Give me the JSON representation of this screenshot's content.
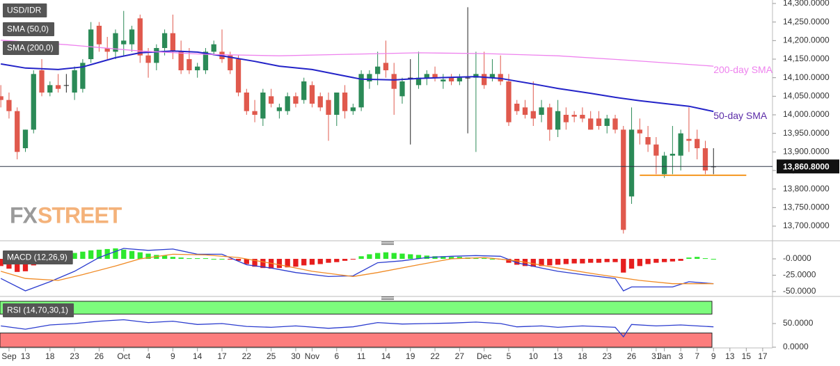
{
  "chart_data": [
    {
      "type": "candlestick",
      "title": "USD/IDR",
      "xlim": [
        -3.1,
        91.2
      ],
      "ylim": [
        13662.5,
        14309.4
      ],
      "grid": false,
      "yticks": [
        {
          "value": 14300,
          "label": "14,300.0000"
        },
        {
          "value": 14250,
          "label": "14,250.0000"
        },
        {
          "value": 14200,
          "label": "14,200.0000"
        },
        {
          "value": 14150,
          "label": "14,150.0000"
        },
        {
          "value": 14100,
          "label": "14,100.0000"
        },
        {
          "value": 14050,
          "label": "14,050.0000"
        },
        {
          "value": 14000,
          "label": "14,000.0000"
        },
        {
          "value": 13950,
          "label": "13,950.0000"
        },
        {
          "value": 13900,
          "label": "13,900.0000"
        },
        {
          "value": 13850,
          "label": "13,850.0000"
        },
        {
          "value": 13800,
          "label": "13,800.0000"
        },
        {
          "value": 13750,
          "label": "13,750.0000"
        },
        {
          "value": 13700,
          "label": "13,700.0000"
        }
      ],
      "up_color": "#2b8a57",
      "down_color": "#e0594d",
      "doji_color": "#222222",
      "candles": {
        "x": [
          -3,
          -2,
          -1,
          0,
          1,
          2,
          3,
          4,
          5,
          6,
          7,
          8,
          9,
          10,
          11,
          12,
          13,
          14,
          15,
          16,
          17,
          18,
          19,
          20,
          21,
          22,
          23,
          24,
          25,
          26,
          27,
          28,
          29,
          30,
          31,
          32,
          33,
          34,
          35,
          36,
          37,
          38,
          39,
          40,
          41,
          42,
          43,
          44,
          45,
          46,
          47,
          48,
          49,
          50,
          51,
          52,
          53,
          54,
          55,
          56,
          57,
          58,
          59,
          60,
          61,
          62,
          63,
          64,
          65,
          66,
          67,
          68,
          69,
          70,
          71,
          72,
          73,
          74,
          75,
          76,
          77,
          78,
          79,
          80,
          81,
          82,
          83,
          84
        ],
        "open": [
          14050,
          14040,
          14010,
          13910,
          13960,
          14120,
          14060,
          14080,
          14080,
          14060,
          14070,
          14150,
          14240,
          14180,
          14170,
          14190,
          14190,
          14260,
          14160,
          14140,
          14180,
          14220,
          14170,
          14150,
          14120,
          14120,
          14170,
          14170,
          14160,
          14150,
          14060,
          14010,
          13990,
          14050,
          14010,
          14010,
          14050,
          14040,
          14080,
          14050,
          14040,
          14000,
          14060,
          14010,
          14020,
          14090,
          14110,
          14140,
          14110,
          14050,
          14100,
          14080,
          14100,
          14110,
          14090,
          14100,
          14090,
          14100,
          14100,
          14110,
          14100,
          14110,
          14090,
          14030,
          14020,
          14010,
          14000,
          14020,
          13960,
          14000,
          14000,
          14000,
          13990,
          13990,
          13970,
          13990,
          13960,
          13780,
          13960,
          13940,
          13920,
          13840,
          13890,
          13890,
          13935,
          13935,
          13910,
          13860
        ],
        "high": [
          14080,
          14060,
          14020,
          13960,
          14120,
          14150,
          14090,
          14110,
          14110,
          14130,
          14150,
          14250,
          14250,
          14210,
          14230,
          14280,
          14240,
          14270,
          14180,
          14190,
          14230,
          14270,
          14200,
          14180,
          14140,
          14180,
          14200,
          14230,
          14170,
          14160,
          14070,
          14040,
          14070,
          14070,
          14030,
          14060,
          14060,
          14100,
          14090,
          14060,
          14060,
          14060,
          14080,
          14030,
          14120,
          14120,
          14170,
          14200,
          14140,
          14100,
          14150,
          14170,
          14120,
          14130,
          14110,
          14110,
          14110,
          14290,
          14170,
          14170,
          14150,
          14160,
          14110,
          14040,
          14040,
          14090,
          14040,
          14030,
          14040,
          14020,
          14010,
          14020,
          14010,
          14010,
          14000,
          14000,
          13970,
          14020,
          13990,
          13970,
          13940,
          13900,
          13970,
          13960,
          14020,
          13960,
          13930,
          13910
        ],
        "low": [
          14020,
          13990,
          13880,
          13900,
          13950,
          14050,
          14050,
          14060,
          14060,
          14040,
          14060,
          14140,
          14170,
          14150,
          14150,
          14160,
          14170,
          14140,
          14100,
          14120,
          14160,
          14150,
          14110,
          14110,
          14100,
          14110,
          14160,
          14140,
          14110,
          14050,
          14000,
          13980,
          13970,
          14020,
          13990,
          14000,
          14020,
          14030,
          14020,
          14010,
          13930,
          13970,
          13990,
          14000,
          14010,
          14070,
          14080,
          14100,
          14000,
          14030,
          13920,
          14070,
          14080,
          14090,
          14070,
          14080,
          14080,
          13950,
          13900,
          14070,
          14090,
          14080,
          13970,
          14000,
          13990,
          13970,
          13980,
          13930,
          13940,
          13960,
          13980,
          13980,
          13960,
          13960,
          13950,
          13950,
          13680,
          13760,
          13920,
          13900,
          13840,
          13830,
          13840,
          13850,
          13900,
          13880,
          13840,
          13840
        ],
        "close": [
          14040,
          14010,
          13900,
          13960,
          14110,
          14060,
          14080,
          14070,
          14080,
          14120,
          14140,
          14230,
          14190,
          14170,
          14220,
          14200,
          14230,
          14160,
          14140,
          14180,
          14220,
          14170,
          14120,
          14120,
          14130,
          14170,
          14190,
          14150,
          14120,
          14060,
          14010,
          14000,
          14060,
          14030,
          14020,
          14050,
          14030,
          14090,
          14030,
          14020,
          14000,
          14060,
          14010,
          14020,
          14110,
          14110,
          14130,
          14120,
          14070,
          14090,
          14100,
          14100,
          14110,
          14100,
          14095,
          14090,
          14100,
          14100,
          14110,
          14080,
          14110,
          14090,
          13980,
          14010,
          14000,
          13990,
          14020,
          13960,
          14010,
          13980,
          13995,
          13990,
          13960,
          13970,
          13990,
          13960,
          13690,
          13960,
          13950,
          13920,
          13890,
          13890,
          13895,
          13950,
          13930,
          13910,
          13850,
          13860.8
        ]
      },
      "series": [
        {
          "name": "SMA (50,0)",
          "color": "#2323c8",
          "x": [
            -3,
            0,
            4,
            7,
            11,
            14,
            18,
            21,
            24,
            28,
            31,
            35,
            38,
            41,
            45,
            48,
            52,
            55,
            58,
            62,
            65,
            69,
            72,
            75,
            79,
            81,
            84
          ],
          "values": [
            14137,
            14126,
            14122,
            14129,
            14154,
            14167,
            14172,
            14169,
            14159,
            14144,
            14131,
            14122,
            14109,
            14096,
            14094,
            14098,
            14101,
            14103,
            14098,
            14083,
            14071,
            14058,
            14047,
            14038,
            14028,
            14023,
            14009
          ]
        },
        {
          "name": "SMA (200,0)",
          "color": "#ee82ee",
          "x": [
            -3,
            5,
            14,
            22,
            31,
            39,
            48,
            56,
            65,
            73,
            84
          ],
          "values": [
            14201,
            14189,
            14172,
            14163,
            14159,
            14163,
            14167,
            14165,
            14159,
            14148,
            14131
          ]
        }
      ],
      "annotations": [
        {
          "text": "200-day SMA",
          "color": "#ee82ee",
          "series": 1
        },
        {
          "text": "50-day SMA",
          "color": "#5b2ca8",
          "series": 0
        }
      ],
      "support": {
        "value": 13837,
        "x": [
          75,
          88
        ],
        "color": "#f5961e"
      },
      "last_price": {
        "value": 13860.8,
        "label": "13,860.8000"
      },
      "watermark": [
        "FX",
        "STREET"
      ]
    },
    {
      "type": "macd",
      "title": "MACD (12,26,9)",
      "xlim": [
        -3.1,
        91.2
      ],
      "ylim": [
        -56.4,
        21.3
      ],
      "yticks": [
        {
          "value": 0,
          "label": "-0.0000"
        },
        {
          "value": -25,
          "label": "-25.0000"
        },
        {
          "value": -50,
          "label": "-50.0000"
        }
      ],
      "histogram": {
        "pos_color": "#2ee82e",
        "neg_color": "#e61e1e",
        "x": [
          -3,
          -2,
          -1,
          0,
          1,
          2,
          3,
          4,
          5,
          6,
          7,
          8,
          9,
          10,
          11,
          12,
          13,
          14,
          15,
          16,
          17,
          18,
          19,
          20,
          21,
          22,
          23,
          24,
          25,
          26,
          27,
          28,
          29,
          30,
          31,
          32,
          33,
          34,
          35,
          36,
          37,
          38,
          39,
          40,
          41,
          42,
          43,
          44,
          45,
          46,
          47,
          48,
          49,
          50,
          51,
          52,
          53,
          54,
          55,
          56,
          57,
          58,
          59,
          60,
          61,
          62,
          63,
          64,
          65,
          66,
          67,
          68,
          69,
          70,
          71,
          72,
          73,
          74,
          75,
          76,
          77,
          78,
          79,
          80,
          81,
          82,
          83,
          84
        ],
        "values": [
          -11,
          -15,
          -20,
          -19,
          -10,
          -5,
          -2,
          3,
          6,
          9,
          11,
          13,
          14,
          15,
          16,
          14,
          12,
          10,
          8,
          6,
          5,
          3,
          2,
          1,
          1,
          1,
          0,
          0,
          -1,
          -3,
          -8,
          -12,
          -14,
          -15,
          -14,
          -13,
          -12,
          -10,
          -9,
          -8,
          -6,
          -5,
          -3,
          -1,
          4,
          7,
          9,
          10,
          9,
          8,
          7,
          6,
          5,
          4,
          4,
          3,
          3,
          2,
          1,
          1,
          0,
          -1,
          -6,
          -9,
          -11,
          -12,
          -11,
          -10,
          -9,
          -8,
          -7,
          -7,
          -6,
          -6,
          -5,
          -5,
          -21,
          -15,
          -11,
          -8,
          -6,
          -5,
          -4,
          -3,
          2,
          3,
          1,
          0
        ]
      },
      "series": [
        {
          "name": "MACD",
          "color": "#2b3ccf",
          "x": [
            -3,
            0,
            3,
            6,
            9,
            12,
            15,
            18,
            21,
            24,
            27,
            30,
            33,
            37,
            40,
            43,
            46,
            49,
            52,
            55,
            58,
            60,
            63,
            65,
            68,
            72,
            73,
            74,
            77,
            79,
            81,
            84
          ],
          "values": [
            -30,
            -49,
            -35,
            -19,
            2,
            16,
            13,
            15,
            7,
            7,
            -9,
            -14,
            -21,
            -27,
            -26,
            -6,
            -3,
            2,
            4,
            5,
            4,
            -6,
            -14,
            -19,
            -24,
            -30,
            -49,
            -43,
            -43,
            -43,
            -35,
            -38
          ]
        },
        {
          "name": "Signal",
          "color": "#f08a24",
          "x": [
            -3,
            0,
            4,
            7,
            11,
            14,
            18,
            22,
            26,
            31,
            35,
            40,
            43,
            48,
            52,
            56,
            60,
            65,
            70,
            75,
            79,
            84
          ],
          "values": [
            -19,
            -30,
            -33,
            -24,
            -11,
            0,
            7,
            6,
            2,
            -9,
            -19,
            -27,
            -21,
            -9,
            0,
            2,
            -3,
            -14,
            -24,
            -33,
            -38,
            -38
          ]
        }
      ]
    },
    {
      "type": "rsi",
      "title": "RSI (14,70,30,1)",
      "xlim": [
        -3.1,
        91.2
      ],
      "ylim": [
        -1.5,
        98.5
      ],
      "yticks": [
        {
          "value": 50,
          "label": "50.0000"
        },
        {
          "value": 0,
          "label": "0.0000"
        }
      ],
      "overbought": 70,
      "oversold": 30,
      "overbought_color": "#7dfc7d",
      "oversold_color": "#fc7d7d",
      "series": [
        {
          "name": "RSI",
          "color": "#2b3ccf",
          "x": [
            -3,
            0,
            3,
            6,
            9,
            12,
            15,
            18,
            21,
            24,
            27,
            30,
            33,
            37,
            40,
            43,
            46,
            49,
            52,
            55,
            58,
            60,
            63,
            65,
            68,
            72,
            73,
            74,
            77,
            80,
            84
          ],
          "values": [
            45,
            38,
            47,
            50,
            55,
            58,
            52,
            55,
            48,
            50,
            44,
            42,
            45,
            40,
            43,
            52,
            49,
            50,
            51,
            53,
            50,
            43,
            45,
            42,
            45,
            42,
            22,
            48,
            45,
            47,
            43
          ]
        }
      ],
      "xticks": [
        {
          "value": -2,
          "label": "Sep"
        },
        {
          "value": 0,
          "label": "13"
        },
        {
          "value": 3,
          "label": "18"
        },
        {
          "value": 6,
          "label": "23"
        },
        {
          "value": 9,
          "label": "26"
        },
        {
          "value": 12,
          "label": "Oct"
        },
        {
          "value": 15,
          "label": "4"
        },
        {
          "value": 18,
          "label": "9"
        },
        {
          "value": 21,
          "label": "14"
        },
        {
          "value": 24,
          "label": "17"
        },
        {
          "value": 27,
          "label": "22"
        },
        {
          "value": 30,
          "label": "25"
        },
        {
          "value": 33,
          "label": "30"
        },
        {
          "value": 35,
          "label": "Nov"
        },
        {
          "value": 38,
          "label": "6"
        },
        {
          "value": 41,
          "label": "11"
        },
        {
          "value": 44,
          "label": "14"
        },
        {
          "value": 47,
          "label": "19"
        },
        {
          "value": 50,
          "label": "22"
        },
        {
          "value": 53,
          "label": "27"
        },
        {
          "value": 56,
          "label": "Dec"
        },
        {
          "value": 59,
          "label": "5"
        },
        {
          "value": 62,
          "label": "10"
        },
        {
          "value": 65,
          "label": "13"
        },
        {
          "value": 68,
          "label": "18"
        },
        {
          "value": 71,
          "label": "23"
        },
        {
          "value": 74,
          "label": "26"
        },
        {
          "value": 77,
          "label": "31"
        },
        {
          "value": 78,
          "label": "Jan"
        },
        {
          "value": 80,
          "label": "3"
        },
        {
          "value": 82,
          "label": "7"
        },
        {
          "value": 84,
          "label": "9"
        },
        {
          "value": 86,
          "label": "13"
        },
        {
          "value": 88,
          "label": "15"
        },
        {
          "value": 90,
          "label": "17"
        }
      ]
    }
  ]
}
